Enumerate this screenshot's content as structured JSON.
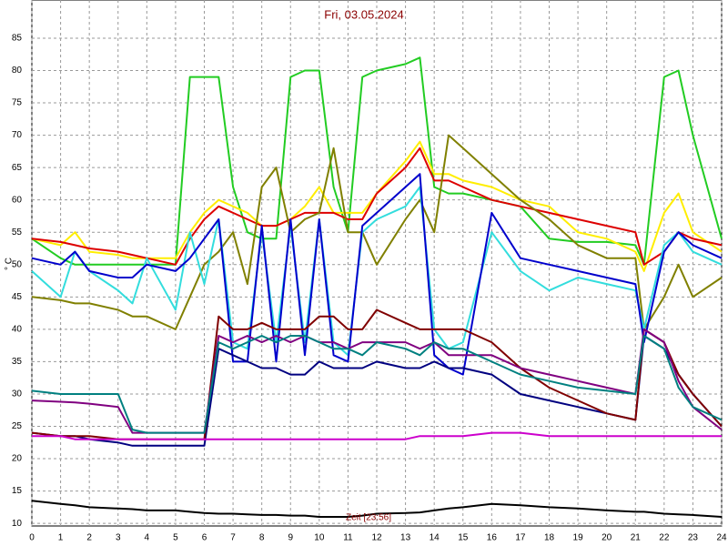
{
  "chart_data": {
    "type": "line",
    "title": "Fri, 03.05.2024",
    "y_label": "° C",
    "annotation": "Zeit [23:56]",
    "x": [
      0,
      1,
      1.5,
      2,
      3,
      3.5,
      4,
      5,
      5.5,
      6,
      6.5,
      7,
      7.5,
      8,
      8.5,
      9,
      9.5,
      10,
      10.5,
      11,
      11.5,
      12,
      13,
      13.5,
      14,
      14.5,
      15,
      16,
      17,
      18,
      19,
      20,
      21,
      21.3,
      22,
      22.5,
      23,
      24
    ],
    "xlim": [
      0,
      24
    ],
    "xticks": [
      0,
      1,
      2,
      3,
      4,
      5,
      6,
      7,
      8,
      9,
      10,
      11,
      12,
      13,
      14,
      15,
      16,
      17,
      18,
      19,
      20,
      21,
      22,
      23,
      24
    ],
    "ylim": [
      9.6,
      90.9
    ],
    "yticks": [
      10,
      15,
      20,
      25,
      30,
      35,
      40,
      45,
      50,
      55,
      60,
      65,
      70,
      75,
      80,
      85
    ],
    "grid": true,
    "series": [
      {
        "color": "#22cc22",
        "values": [
          54,
          51,
          50,
          50,
          50,
          50,
          50,
          50,
          79,
          79,
          79,
          62,
          55,
          54,
          54,
          79,
          80,
          80,
          62,
          55,
          79,
          80,
          81,
          82,
          62,
          61,
          61,
          60,
          59,
          54,
          53.5,
          53.5,
          53,
          50,
          79,
          80,
          70,
          54
        ]
      },
      {
        "color": "#ffee00",
        "values": [
          54,
          53,
          55,
          52,
          51.5,
          51,
          51,
          51,
          55,
          58,
          60,
          59,
          58,
          56,
          56,
          57,
          59,
          62,
          58,
          58,
          58,
          61,
          66,
          69,
          64,
          64,
          63,
          62,
          60,
          59,
          55,
          54,
          52,
          49,
          58,
          61,
          55,
          52
        ]
      },
      {
        "color": "#dd0000",
        "values": [
          54,
          53.5,
          53,
          52.5,
          52,
          51.5,
          51,
          50,
          54,
          57,
          59,
          58,
          57,
          56,
          56,
          57,
          58,
          58,
          58,
          57,
          57,
          61,
          65,
          68,
          63,
          63,
          62,
          60,
          59,
          58,
          57,
          56,
          55,
          50,
          52,
          55,
          54,
          53
        ]
      },
      {
        "color": "#808000",
        "values": [
          45,
          44.5,
          44,
          44,
          43,
          42,
          42,
          40,
          45,
          50,
          52,
          55,
          47,
          62,
          65,
          55,
          57,
          58,
          68,
          55,
          55,
          50,
          57,
          60,
          55,
          70,
          68,
          64,
          60,
          57,
          53,
          51,
          51,
          40,
          45,
          50,
          45,
          48
        ]
      },
      {
        "color": "#33dddd",
        "values": [
          49,
          45,
          52,
          49,
          46,
          44,
          51,
          43,
          55,
          47,
          57,
          38,
          37,
          55,
          38,
          56,
          38,
          57,
          38,
          36,
          55,
          57,
          59,
          62,
          40,
          37,
          38,
          55,
          49,
          46,
          48,
          47,
          46,
          40,
          53,
          55,
          52,
          50
        ]
      },
      {
        "color": "#0000cc",
        "values": [
          51,
          50,
          52,
          49,
          48,
          48,
          50,
          49,
          51,
          54,
          57,
          35,
          35,
          56,
          35,
          57,
          36,
          57,
          36,
          35,
          56,
          58,
          62,
          64,
          36,
          34,
          33,
          58,
          51,
          50,
          49,
          48,
          47,
          38,
          52,
          55,
          53,
          51
        ]
      },
      {
        "color": "#000080",
        "values": [
          24,
          23.5,
          23.5,
          23,
          22.5,
          22,
          22,
          22,
          22,
          22,
          37,
          36,
          35,
          34,
          34,
          33,
          33,
          35,
          34,
          34,
          34,
          35,
          34,
          34,
          35,
          34,
          34,
          33,
          30,
          29,
          28,
          27,
          26,
          39,
          37,
          33,
          30,
          25
        ]
      },
      {
        "color": "#800000",
        "values": [
          24,
          23.5,
          23.5,
          23.5,
          23,
          23,
          23,
          23,
          23,
          23,
          42,
          40,
          40,
          41,
          40,
          40,
          40,
          42,
          42,
          40,
          40,
          43,
          41,
          40,
          40,
          40,
          40,
          38,
          34,
          31,
          29,
          27,
          26,
          40,
          38,
          33,
          30,
          25
        ]
      },
      {
        "color": "#800080",
        "values": [
          29,
          28.8,
          28.7,
          28.5,
          28,
          24,
          24,
          24,
          24,
          24,
          39,
          38,
          39,
          38,
          39,
          38,
          39,
          38,
          38,
          37,
          38,
          38,
          38,
          37,
          38,
          36,
          36,
          36,
          34,
          33,
          32,
          31,
          30,
          40,
          38,
          32,
          28,
          24.5
        ]
      },
      {
        "color": "#008080",
        "values": [
          30.5,
          30,
          30,
          30,
          30,
          24.5,
          24,
          24,
          24,
          24,
          38,
          37,
          38,
          39,
          38,
          39,
          39,
          38,
          37,
          37,
          36,
          38,
          37,
          36,
          38,
          37,
          37,
          35,
          33,
          32,
          31,
          30.5,
          30,
          39,
          37,
          31,
          28,
          26
        ]
      },
      {
        "color": "#cc00cc",
        "values": [
          23.5,
          23.5,
          23,
          23,
          23,
          23,
          23,
          23,
          23,
          23,
          23,
          23,
          23,
          23,
          23,
          23,
          23,
          23,
          23,
          23,
          23,
          23,
          23,
          23.5,
          23.5,
          23.5,
          23.5,
          24,
          24,
          23.5,
          23.5,
          23.5,
          23.5,
          23.5,
          23.5,
          23.5,
          23.5,
          23.5
        ]
      },
      {
        "color": "#000000",
        "values": [
          13.5,
          13,
          12.8,
          12.5,
          12.3,
          12.2,
          12,
          12,
          11.8,
          11.6,
          11.5,
          11.5,
          11.4,
          11.3,
          11.3,
          11.2,
          11.2,
          11,
          11,
          11,
          11.2,
          11.5,
          11.6,
          11.7,
          12,
          12.3,
          12.5,
          13,
          12.8,
          12.5,
          12.3,
          12,
          11.8,
          11.8,
          11.5,
          11.4,
          11.3,
          11
        ]
      }
    ]
  }
}
